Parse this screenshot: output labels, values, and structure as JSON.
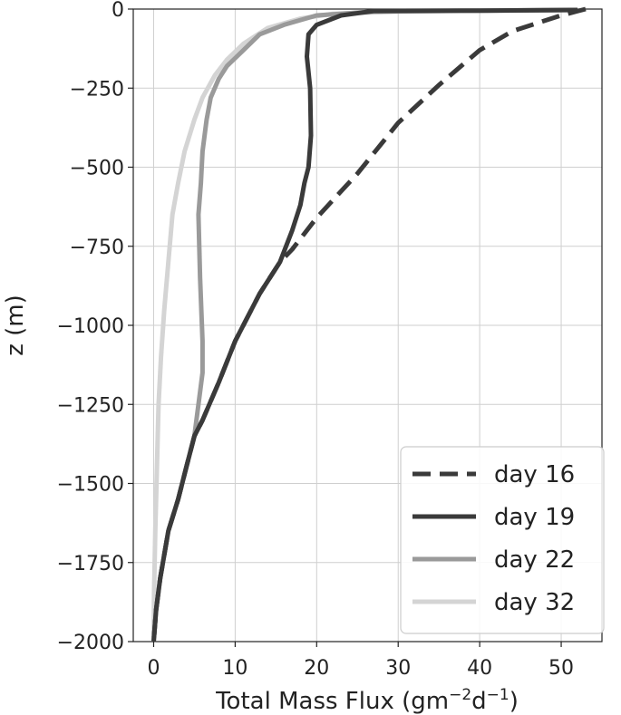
{
  "chart_data": {
    "type": "line",
    "title": "",
    "xlabel": "Total Mass Flux (gm",
    "xlabel_sup1": "−2",
    "xlabel_mid": "d",
    "xlabel_sup2": "−1",
    "xlabel_end": ")",
    "ylabel": "z (m)",
    "xlim": [
      -2.5,
      55
    ],
    "ylim": [
      -2000,
      0
    ],
    "xticks": [
      0,
      10,
      20,
      30,
      40,
      50
    ],
    "yticks": [
      0,
      -250,
      -500,
      -750,
      -1000,
      -1250,
      -1500,
      -1750,
      -2000
    ],
    "xtick_labels": [
      "0",
      "10",
      "20",
      "30",
      "40",
      "50"
    ],
    "ytick_labels": [
      "0",
      "−250",
      "−500",
      "−750",
      "−1000",
      "−1250",
      "−1500",
      "−1750",
      "−2000"
    ],
    "grid": true,
    "legend_position": "bottom-right",
    "series": [
      {
        "name": "day 16",
        "color": "#3a3a3a",
        "dash": "dashed",
        "points": [
          [
            53,
            0
          ],
          [
            50,
            -20
          ],
          [
            44,
            -70
          ],
          [
            40,
            -130
          ],
          [
            35,
            -240
          ],
          [
            30,
            -360
          ],
          [
            25,
            -520
          ],
          [
            20,
            -660
          ],
          [
            17,
            -760
          ],
          [
            15.5,
            -800
          ],
          [
            13,
            -900
          ],
          [
            10,
            -1050
          ],
          [
            8,
            -1180
          ],
          [
            6,
            -1300
          ],
          [
            5,
            -1350
          ],
          [
            4,
            -1450
          ],
          [
            3,
            -1550
          ],
          [
            1.8,
            -1650
          ],
          [
            0.8,
            -1800
          ],
          [
            0.3,
            -1900
          ],
          [
            0,
            -2000
          ]
        ]
      },
      {
        "name": "day 19",
        "color": "#3a3a3a",
        "dash": "solid",
        "points": [
          [
            52,
            -3
          ],
          [
            40,
            -5
          ],
          [
            27,
            -6
          ],
          [
            23,
            -20
          ],
          [
            20,
            -50
          ],
          [
            19,
            -80
          ],
          [
            18.8,
            -150
          ],
          [
            19.2,
            -250
          ],
          [
            19.3,
            -400
          ],
          [
            19,
            -500
          ],
          [
            18.5,
            -550
          ],
          [
            18,
            -620
          ],
          [
            17,
            -700
          ],
          [
            15.5,
            -800
          ],
          [
            13,
            -900
          ],
          [
            10,
            -1050
          ],
          [
            8,
            -1180
          ],
          [
            6,
            -1300
          ],
          [
            5,
            -1350
          ],
          [
            4,
            -1450
          ],
          [
            3,
            -1550
          ],
          [
            1.8,
            -1650
          ],
          [
            0.8,
            -1800
          ],
          [
            0.3,
            -1900
          ],
          [
            0,
            -2000
          ]
        ]
      },
      {
        "name": "day 22",
        "color": "#9a9a9a",
        "dash": "solid",
        "points": [
          [
            52,
            -3
          ],
          [
            40,
            -5
          ],
          [
            27,
            -8
          ],
          [
            20,
            -20
          ],
          [
            16,
            -50
          ],
          [
            13,
            -80
          ],
          [
            11,
            -130
          ],
          [
            9,
            -180
          ],
          [
            8,
            -220
          ],
          [
            7,
            -280
          ],
          [
            6.5,
            -350
          ],
          [
            6,
            -450
          ],
          [
            5.8,
            -550
          ],
          [
            5.5,
            -650
          ],
          [
            5.7,
            -850
          ],
          [
            6,
            -1050
          ],
          [
            6,
            -1150
          ],
          [
            5.5,
            -1250
          ],
          [
            5,
            -1350
          ],
          [
            4,
            -1450
          ],
          [
            3,
            -1550
          ],
          [
            1.8,
            -1650
          ],
          [
            0.8,
            -1800
          ],
          [
            0.3,
            -1900
          ],
          [
            0,
            -2000
          ]
        ]
      },
      {
        "name": "day 32",
        "color": "#d4d4d4",
        "dash": "solid",
        "points": [
          [
            52,
            -3
          ],
          [
            40,
            -5
          ],
          [
            30,
            -8
          ],
          [
            22,
            -15
          ],
          [
            18,
            -30
          ],
          [
            14,
            -60
          ],
          [
            11,
            -110
          ],
          [
            9,
            -160
          ],
          [
            7.5,
            -210
          ],
          [
            6,
            -280
          ],
          [
            5,
            -350
          ],
          [
            3.8,
            -450
          ],
          [
            3,
            -550
          ],
          [
            2.3,
            -650
          ],
          [
            1.8,
            -800
          ],
          [
            1.3,
            -950
          ],
          [
            0.9,
            -1100
          ],
          [
            0.6,
            -1250
          ],
          [
            0.4,
            -1450
          ],
          [
            0.2,
            -1650
          ],
          [
            0.05,
            -1850
          ],
          [
            0,
            -2000
          ]
        ]
      }
    ]
  }
}
